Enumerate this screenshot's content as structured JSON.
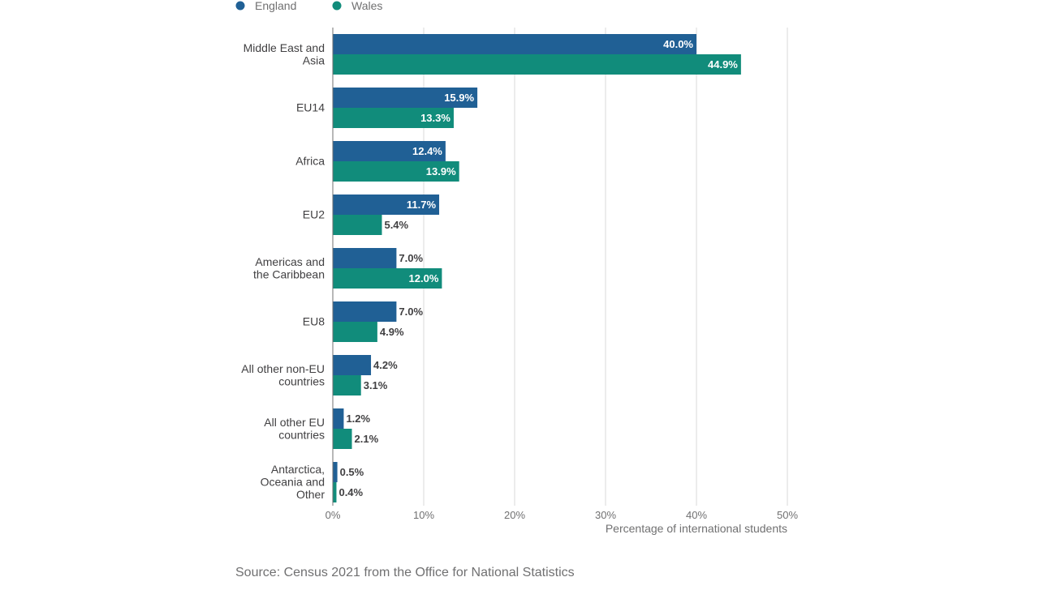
{
  "chart_data": {
    "type": "bar",
    "orientation": "horizontal",
    "categories": [
      [
        "Middle East and",
        "Asia"
      ],
      [
        "EU14"
      ],
      [
        "Africa"
      ],
      [
        "EU2"
      ],
      [
        "Americas and",
        "the Caribbean"
      ],
      [
        "EU8"
      ],
      [
        "All other non-EU",
        "countries"
      ],
      [
        "All other EU",
        "countries"
      ],
      [
        "Antarctica,",
        "Oceania and",
        "Other"
      ]
    ],
    "series": [
      {
        "name": "England",
        "color": "#206095",
        "values": [
          40.0,
          15.9,
          12.4,
          11.7,
          7.0,
          7.0,
          4.2,
          1.2,
          0.5
        ],
        "labels": [
          "40.0%",
          "15.9%",
          "12.4%",
          "11.7%",
          "7.0%",
          "7.0%",
          "4.2%",
          "1.2%",
          "0.5%"
        ]
      },
      {
        "name": "Wales",
        "color": "#118c7b",
        "values": [
          44.9,
          13.3,
          13.9,
          5.4,
          12.0,
          4.9,
          3.1,
          2.1,
          0.4
        ],
        "labels": [
          "44.9%",
          "13.3%",
          "13.9%",
          "5.4%",
          "12.0%",
          "4.9%",
          "3.1%",
          "2.1%",
          "0.4%"
        ]
      }
    ],
    "xlim": [
      0,
      50
    ],
    "xticks": [
      0,
      10,
      20,
      30,
      40,
      50
    ],
    "xtick_labels": [
      "0%",
      "10%",
      "20%",
      "30%",
      "40%",
      "50%"
    ],
    "xlabel": "Percentage of international students",
    "grid": true,
    "legend_position": "top-left"
  },
  "source": "Source: Census 2021 from the Office for National Statistics"
}
